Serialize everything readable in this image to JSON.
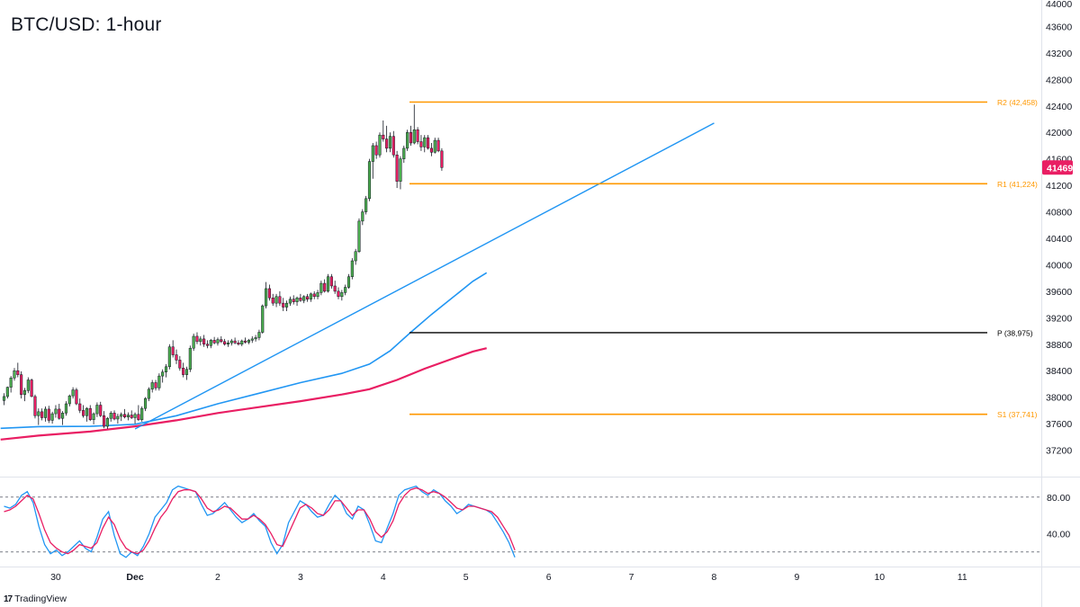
{
  "header": {
    "title": "BTC/USD: 1-hour"
  },
  "branding": {
    "logo_icon": "tradingview-logo-icon",
    "name": "TradingView"
  },
  "colors": {
    "bull": "#4caf50",
    "bear": "#e91e63",
    "level": "#ff9800",
    "pivot": "#000000",
    "trend": "#2196f3",
    "ema_fast": "#2196f3",
    "ema_slow": "#e91e63",
    "last_price_bg": "#e91e63"
  },
  "chart_data": [
    {
      "type": "candlestick",
      "title": "BTC/USD: 1-hour",
      "ylim": [
        36800,
        44000
      ],
      "y_ticks": [
        37200,
        37600,
        38000,
        38400,
        38800,
        39200,
        39600,
        40000,
        40400,
        40800,
        41200,
        41600,
        42000,
        42400,
        42800,
        43200,
        43600,
        44000
      ],
      "x_ticks": [
        {
          "label": "30",
          "t": 15
        },
        {
          "label": "Dec",
          "t": 38
        },
        {
          "label": "2",
          "t": 62
        },
        {
          "label": "3",
          "t": 86
        },
        {
          "label": "4",
          "t": 110
        },
        {
          "label": "5",
          "t": 134
        },
        {
          "label": "6",
          "t": 158
        },
        {
          "label": "7",
          "t": 182
        },
        {
          "label": "8",
          "t": 206
        },
        {
          "label": "9",
          "t": 230
        },
        {
          "label": "10",
          "t": 254
        },
        {
          "label": "11",
          "t": 278
        }
      ],
      "last_price": {
        "value": 41469,
        "label": "41469"
      },
      "levels": [
        {
          "name": "R2",
          "label": "R2 (42,458)",
          "value": 42458,
          "color": "#ff9800"
        },
        {
          "name": "R1",
          "label": "R1 (41,224)",
          "value": 41224,
          "color": "#ff9800"
        },
        {
          "name": "P",
          "label": "P (38,975)",
          "value": 38975,
          "color": "#000000"
        },
        {
          "name": "S1",
          "label": "S1 (37,741)",
          "value": 37741,
          "color": "#ff9800"
        }
      ],
      "trendline": {
        "t0": 38,
        "p0": 37520,
        "t1": 206,
        "p1": 42140,
        "color": "#2196f3"
      },
      "moving_averages": [
        {
          "color": "#2196f3",
          "points": [
            [
              -1,
              37530
            ],
            [
              10,
              37555
            ],
            [
              25,
              37560
            ],
            [
              38,
              37590
            ],
            [
              50,
              37720
            ],
            [
              62,
              37900
            ],
            [
              74,
              38060
            ],
            [
              86,
              38220
            ],
            [
              98,
              38360
            ],
            [
              106,
              38500
            ],
            [
              112,
              38700
            ],
            [
              118,
              38980
            ],
            [
              124,
              39250
            ],
            [
              130,
              39500
            ],
            [
              136,
              39750
            ],
            [
              140,
              39880
            ]
          ]
        },
        {
          "color": "#e91e63",
          "points": [
            [
              -1,
              37360
            ],
            [
              10,
              37420
            ],
            [
              25,
              37480
            ],
            [
              38,
              37560
            ],
            [
              50,
              37650
            ],
            [
              62,
              37760
            ],
            [
              74,
              37850
            ],
            [
              86,
              37940
            ],
            [
              98,
              38040
            ],
            [
              106,
              38120
            ],
            [
              114,
              38260
            ],
            [
              122,
              38430
            ],
            [
              130,
              38580
            ],
            [
              136,
              38690
            ],
            [
              140,
              38740
            ]
          ]
        }
      ],
      "candles": [
        [
          37950,
          38060,
          37880,
          38010
        ],
        [
          38010,
          38160,
          37980,
          38150
        ],
        [
          38150,
          38320,
          38070,
          38290
        ],
        [
          38290,
          38440,
          38250,
          38400
        ],
        [
          38400,
          38520,
          38300,
          38340
        ],
        [
          38340,
          38390,
          37980,
          38040
        ],
        [
          38040,
          38140,
          37940,
          38100
        ],
        [
          38100,
          38300,
          38060,
          38260
        ],
        [
          38260,
          38280,
          38000,
          38010
        ],
        [
          38010,
          38040,
          37680,
          37720
        ],
        [
          37720,
          37830,
          37580,
          37780
        ],
        [
          37780,
          37830,
          37650,
          37690
        ],
        [
          37690,
          37860,
          37630,
          37820
        ],
        [
          37820,
          37870,
          37610,
          37650
        ],
        [
          37650,
          37780,
          37600,
          37750
        ],
        [
          37750,
          37880,
          37690,
          37820
        ],
        [
          37820,
          37900,
          37660,
          37680
        ],
        [
          37680,
          37790,
          37580,
          37760
        ],
        [
          37760,
          37940,
          37720,
          37900
        ],
        [
          37900,
          38040,
          37860,
          38020
        ],
        [
          38020,
          38150,
          37980,
          38110
        ],
        [
          38110,
          38140,
          37880,
          37900
        ],
        [
          37900,
          37980,
          37760,
          37800
        ],
        [
          37800,
          37880,
          37690,
          37720
        ],
        [
          37720,
          37850,
          37630,
          37830
        ],
        [
          37830,
          37880,
          37640,
          37660
        ],
        [
          37660,
          37770,
          37590,
          37750
        ],
        [
          37750,
          37920,
          37700,
          37880
        ],
        [
          37880,
          37930,
          37700,
          37720
        ],
        [
          37720,
          37790,
          37530,
          37560
        ],
        [
          37560,
          37700,
          37520,
          37680
        ],
        [
          37680,
          37790,
          37630,
          37760
        ],
        [
          37760,
          37800,
          37650,
          37670
        ],
        [
          37670,
          37750,
          37600,
          37710
        ],
        [
          37710,
          37770,
          37640,
          37740
        ],
        [
          37740,
          37820,
          37680,
          37700
        ],
        [
          37700,
          37770,
          37650,
          37730
        ],
        [
          37730,
          37800,
          37670,
          37690
        ],
        [
          37690,
          37770,
          37600,
          37740
        ],
        [
          37740,
          37880,
          37640,
          37660
        ],
        [
          37660,
          37860,
          37630,
          37830
        ],
        [
          37830,
          38000,
          37790,
          37980
        ],
        [
          37980,
          38150,
          37940,
          38120
        ],
        [
          38120,
          38260,
          38070,
          38220
        ],
        [
          38220,
          38260,
          38100,
          38140
        ],
        [
          38140,
          38360,
          38100,
          38320
        ],
        [
          38320,
          38420,
          38220,
          38380
        ],
        [
          38380,
          38500,
          38300,
          38460
        ],
        [
          38460,
          38800,
          38420,
          38760
        ],
        [
          38760,
          38860,
          38600,
          38640
        ],
        [
          38640,
          38720,
          38500,
          38560
        ],
        [
          38560,
          38620,
          38400,
          38440
        ],
        [
          38440,
          38520,
          38300,
          38340
        ],
        [
          38340,
          38460,
          38260,
          38420
        ],
        [
          38420,
          38780,
          38380,
          38740
        ],
        [
          38740,
          38960,
          38700,
          38920
        ],
        [
          38920,
          38980,
          38800,
          38840
        ],
        [
          38840,
          38920,
          38780,
          38880
        ],
        [
          38880,
          38940,
          38760,
          38800
        ],
        [
          38800,
          38860,
          38740,
          38780
        ],
        [
          38780,
          38880,
          38740,
          38860
        ],
        [
          38860,
          38910,
          38800,
          38820
        ],
        [
          38820,
          38900,
          38780,
          38870
        ],
        [
          38870,
          38920,
          38820,
          38840
        ],
        [
          38840,
          38880,
          38780,
          38800
        ],
        [
          38800,
          38860,
          38760,
          38820
        ],
        [
          38820,
          38880,
          38780,
          38850
        ],
        [
          38850,
          38900,
          38800,
          38820
        ],
        [
          38820,
          38860,
          38780,
          38800
        ],
        [
          38800,
          38870,
          38770,
          38850
        ],
        [
          38850,
          38900,
          38810,
          38830
        ],
        [
          38830,
          38880,
          38800,
          38860
        ],
        [
          38860,
          38920,
          38820,
          38880
        ],
        [
          38880,
          38940,
          38840,
          38900
        ],
        [
          38900,
          39020,
          38860,
          38980
        ],
        [
          38980,
          39400,
          38960,
          39380
        ],
        [
          39380,
          39740,
          39340,
          39640
        ],
        [
          39640,
          39700,
          39460,
          39500
        ],
        [
          39500,
          39560,
          39380,
          39420
        ],
        [
          39420,
          39560,
          39360,
          39520
        ],
        [
          39520,
          39600,
          39380,
          39420
        ],
        [
          39420,
          39500,
          39300,
          39360
        ],
        [
          39360,
          39460,
          39300,
          39420
        ],
        [
          39420,
          39520,
          39380,
          39480
        ],
        [
          39480,
          39540,
          39400,
          39440
        ],
        [
          39440,
          39520,
          39380,
          39500
        ],
        [
          39500,
          39560,
          39440,
          39460
        ],
        [
          39460,
          39540,
          39420,
          39520
        ],
        [
          39520,
          39560,
          39440,
          39480
        ],
        [
          39480,
          39580,
          39440,
          39560
        ],
        [
          39560,
          39600,
          39480,
          39520
        ],
        [
          39520,
          39620,
          39480,
          39580
        ],
        [
          39580,
          39760,
          39540,
          39720
        ],
        [
          39720,
          39780,
          39580,
          39600
        ],
        [
          39600,
          39860,
          39580,
          39820
        ],
        [
          39820,
          39860,
          39640,
          39680
        ],
        [
          39680,
          39760,
          39560,
          39600
        ],
        [
          39600,
          39660,
          39480,
          39520
        ],
        [
          39520,
          39620,
          39460,
          39580
        ],
        [
          39580,
          39700,
          39540,
          39660
        ],
        [
          39660,
          39860,
          39640,
          39820
        ],
        [
          39820,
          40100,
          39780,
          40060
        ],
        [
          40060,
          40240,
          40000,
          40200
        ],
        [
          40200,
          40700,
          40180,
          40660
        ],
        [
          40660,
          40840,
          40600,
          40800
        ],
        [
          40800,
          41040,
          40760,
          41000
        ],
        [
          41000,
          41600,
          40960,
          41560
        ],
        [
          41560,
          41840,
          41300,
          41800
        ],
        [
          41800,
          41860,
          41600,
          41660
        ],
        [
          41660,
          42000,
          41620,
          41960
        ],
        [
          41960,
          42180,
          41860,
          41900
        ],
        [
          41900,
          42100,
          41700,
          41760
        ],
        [
          41760,
          42000,
          41700,
          41940
        ],
        [
          41940,
          42020,
          41620,
          41660
        ],
        [
          41660,
          41720,
          41160,
          41260
        ],
        [
          41260,
          41640,
          41140,
          41600
        ],
        [
          41600,
          41800,
          41540,
          41760
        ],
        [
          41760,
          42040,
          41720,
          42000
        ],
        [
          42000,
          42100,
          41800,
          41840
        ],
        [
          41840,
          42420,
          41820,
          42040
        ],
        [
          42040,
          42080,
          41820,
          41860
        ],
        [
          41860,
          41960,
          41720,
          41780
        ],
        [
          41780,
          41960,
          41700,
          41920
        ],
        [
          41920,
          41960,
          41740,
          41760
        ],
        [
          41760,
          41840,
          41640,
          41700
        ],
        [
          41700,
          41920,
          41680,
          41880
        ],
        [
          41880,
          41920,
          41700,
          41720
        ],
        [
          41720,
          41760,
          41420,
          41469
        ]
      ]
    },
    {
      "type": "line",
      "name": "stochastic-oscillator",
      "ylim": [
        0,
        100
      ],
      "y_ticks": [
        {
          "value": 80,
          "label": "80.00"
        },
        {
          "value": 40,
          "label": "40.00"
        }
      ],
      "guides": [
        80,
        20
      ],
      "series": [
        {
          "color": "#2196f3",
          "values": [
            70,
            68,
            72,
            82,
            86,
            74,
            48,
            28,
            18,
            22,
            16,
            20,
            26,
            32,
            24,
            20,
            36,
            56,
            64,
            38,
            18,
            14,
            20,
            16,
            26,
            40,
            58,
            66,
            74,
            88,
            92,
            90,
            88,
            86,
            72,
            60,
            62,
            68,
            74,
            66,
            58,
            52,
            56,
            62,
            54,
            48,
            30,
            18,
            28,
            52,
            64,
            76,
            72,
            64,
            58,
            60,
            72,
            82,
            76,
            62,
            56,
            70,
            66,
            50,
            32,
            30,
            46,
            62,
            82,
            88,
            90,
            92,
            86,
            82,
            88,
            84,
            76,
            70,
            62,
            66,
            72,
            70,
            68,
            66,
            62,
            52,
            42,
            30,
            14
          ]
        },
        {
          "color": "#e91e63",
          "values": [
            64,
            66,
            70,
            76,
            82,
            78,
            62,
            44,
            30,
            24,
            20,
            18,
            22,
            28,
            26,
            24,
            30,
            46,
            58,
            50,
            34,
            24,
            20,
            18,
            22,
            32,
            46,
            58,
            66,
            78,
            86,
            88,
            88,
            86,
            78,
            68,
            64,
            66,
            70,
            68,
            62,
            56,
            56,
            60,
            56,
            50,
            40,
            28,
            26,
            40,
            54,
            68,
            72,
            68,
            62,
            60,
            66,
            76,
            76,
            68,
            60,
            66,
            66,
            56,
            42,
            36,
            42,
            54,
            72,
            82,
            88,
            90,
            88,
            84,
            86,
            84,
            80,
            74,
            68,
            66,
            70,
            70,
            68,
            66,
            64,
            58,
            48,
            38,
            22
          ]
        }
      ]
    }
  ]
}
